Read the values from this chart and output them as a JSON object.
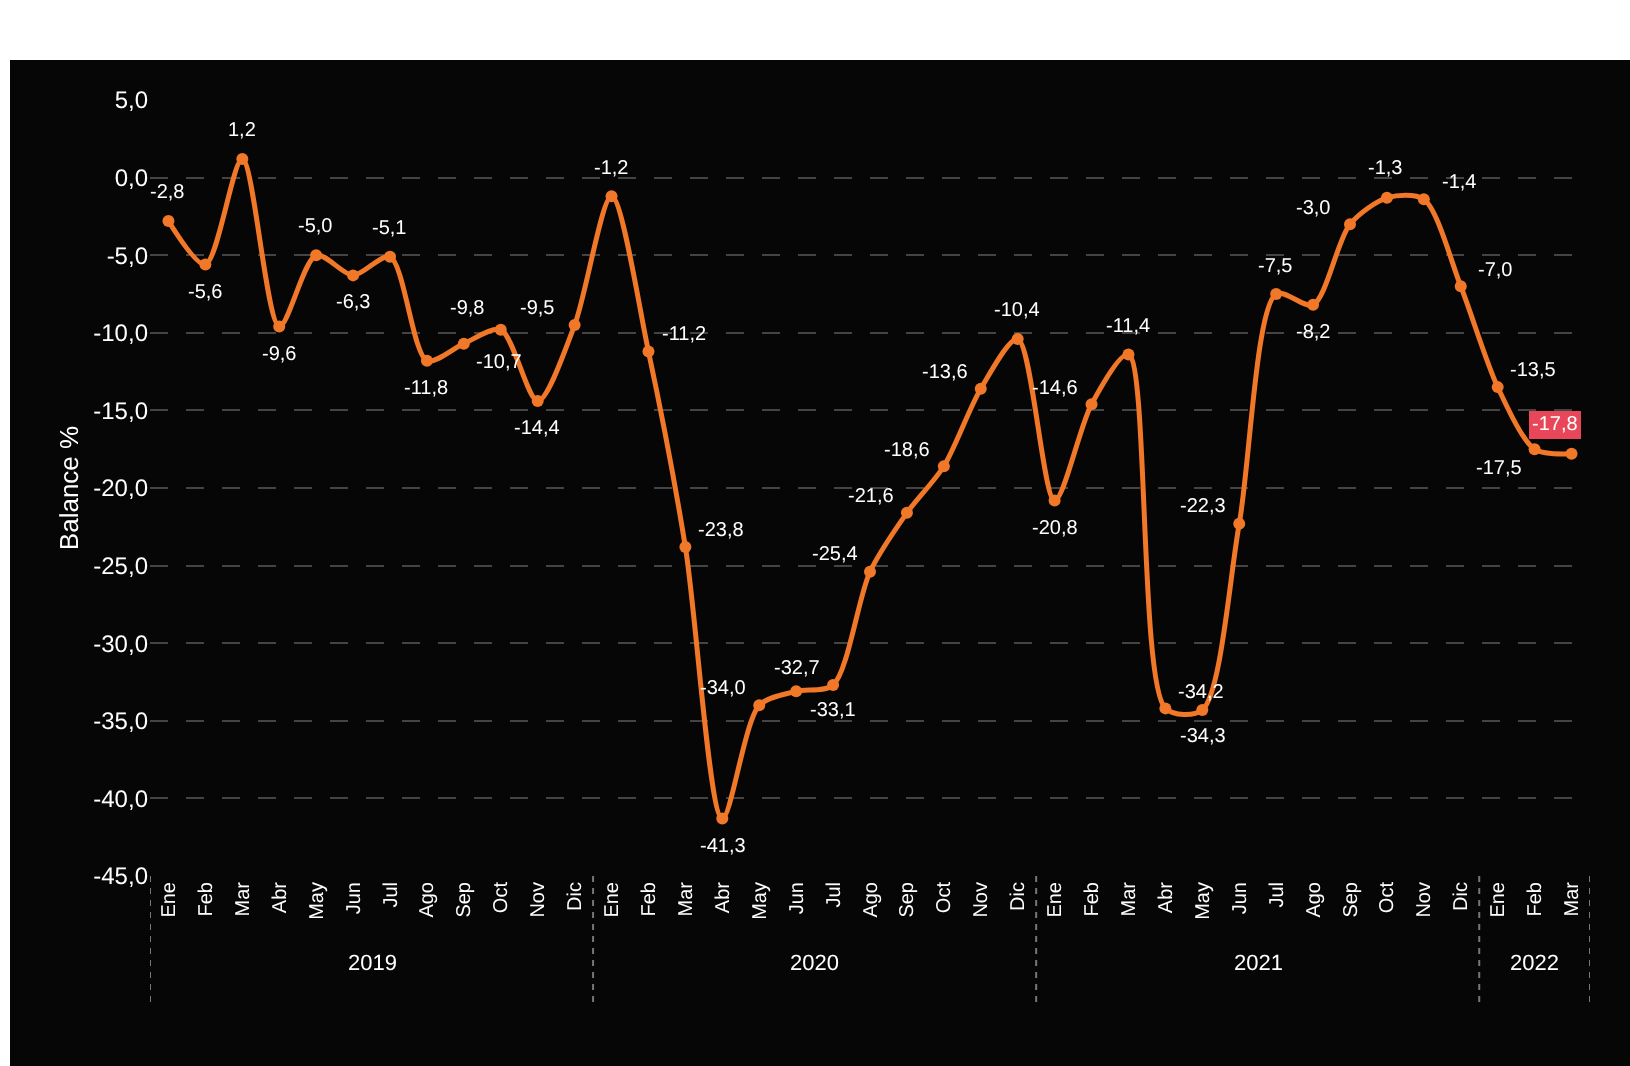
{
  "chart_data": {
    "type": "line",
    "ylabel": "Balance %",
    "categories": [
      "Ene",
      "Feb",
      "Mar",
      "Abr",
      "May",
      "Jun",
      "Jul",
      "Ago",
      "Sep",
      "Oct",
      "Nov",
      "Dic",
      "Ene",
      "Feb",
      "Mar",
      "Abr",
      "May",
      "Jun",
      "Jul",
      "Ago",
      "Sep",
      "Oct",
      "Nov",
      "Dic",
      "Ene",
      "Feb",
      "Mar",
      "Abr",
      "May",
      "Jun",
      "Jul",
      "Ago",
      "Sep",
      "Oct",
      "Nov",
      "Dic",
      "Ene",
      "Feb",
      "Mar"
    ],
    "series": [
      {
        "color": "#f07828",
        "values": [
          -2.8,
          -5.6,
          1.2,
          -9.6,
          -5.0,
          -6.3,
          -5.1,
          -11.8,
          -10.7,
          -9.8,
          -14.4,
          -9.5,
          -1.2,
          -11.2,
          -23.8,
          -41.3,
          -34.0,
          -33.1,
          -32.7,
          -25.4,
          -21.6,
          -18.6,
          -13.6,
          -10.4,
          -20.8,
          -14.6,
          -11.4,
          -34.2,
          -34.3,
          -22.3,
          -7.5,
          -8.2,
          -3.0,
          -1.3,
          -1.4,
          -7.0,
          -13.5,
          -17.5,
          -17.8
        ],
        "value_labels": [
          "-2,8",
          "-5,6",
          "1,2",
          "-9,6",
          "-5,0",
          "-6,3",
          "-5,1",
          "-11,8",
          "-10,7",
          "-9,8",
          "-14,4",
          "-9,5",
          "-1,2",
          "-11,2",
          "-23,8",
          "-41,3",
          "-34,0",
          "-33,1",
          "-32,7",
          "-25,4",
          "-21,6",
          "-18,6",
          "-13,6",
          "-10,4",
          "-20,8",
          "-14,6",
          "-11,4",
          "-34,2",
          "-34,3",
          "-22,3",
          "-7,5",
          "-8,2",
          "-3,0",
          "-1,3",
          "-1,4",
          "-7,0",
          "-13,5",
          "-17,5",
          "-17,8"
        ]
      }
    ],
    "ylim": [
      -45,
      5
    ],
    "yticks": [
      {
        "value": -45,
        "label": "-45,0"
      },
      {
        "value": -40,
        "label": "-40,0"
      },
      {
        "value": -35,
        "label": "-35,0"
      },
      {
        "value": -30,
        "label": "-30,0"
      },
      {
        "value": -25,
        "label": "-25,0"
      },
      {
        "value": -20,
        "label": "-20,0"
      },
      {
        "value": -15,
        "label": "-15,0"
      },
      {
        "value": -10,
        "label": "-10,0"
      },
      {
        "value": -5,
        "label": "-5,0"
      },
      {
        "value": 0,
        "label": "0,0"
      },
      {
        "value": 5,
        "label": "5,0"
      }
    ],
    "grid": "y",
    "marker": "circle",
    "line_style": "solid",
    "legend": false,
    "annotations": [
      "2019",
      "2020",
      "2021",
      "2022"
    ]
  }
}
